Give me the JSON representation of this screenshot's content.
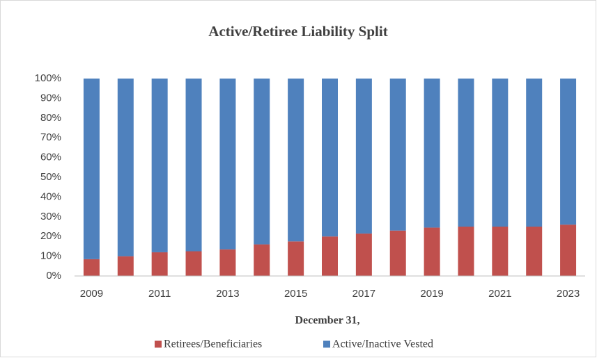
{
  "chart_data": {
    "type": "stacked_bar",
    "title": "Active/Retiree Liability  Split",
    "x_label": "December 31,",
    "categories": [
      "2009",
      null,
      "2011",
      null,
      "2013",
      null,
      "2015",
      null,
      "2017",
      null,
      "2019",
      null,
      "2021",
      null,
      "2023"
    ],
    "series": [
      {
        "name": "Retirees/Beneficiaries",
        "color": "#c0504d",
        "values": [
          8.5,
          10,
          12,
          12.5,
          13.5,
          16,
          17.5,
          20,
          21.5,
          23,
          24.5,
          25,
          25,
          25,
          26
        ]
      },
      {
        "name": "Active/Inactive Vested",
        "color": "#4f81bd",
        "values": [
          91.5,
          90,
          88,
          87.5,
          86.5,
          84,
          82.5,
          80,
          78.5,
          77,
          75.5,
          75,
          75,
          75,
          74
        ]
      }
    ],
    "ylim": [
      0,
      100
    ],
    "yticks": [
      {
        "value": 0,
        "label": "0%"
      },
      {
        "value": 10,
        "label": "10%"
      },
      {
        "value": 20,
        "label": "20%"
      },
      {
        "value": 30,
        "label": "30%"
      },
      {
        "value": 40,
        "label": "40%"
      },
      {
        "value": 50,
        "label": "50%"
      },
      {
        "value": 60,
        "label": "60%"
      },
      {
        "value": 70,
        "label": "70%"
      },
      {
        "value": 80,
        "label": "80%"
      },
      {
        "value": 90,
        "label": "90%"
      },
      {
        "value": 100,
        "label": "100%"
      }
    ],
    "grid": false,
    "legend": "bottom"
  }
}
